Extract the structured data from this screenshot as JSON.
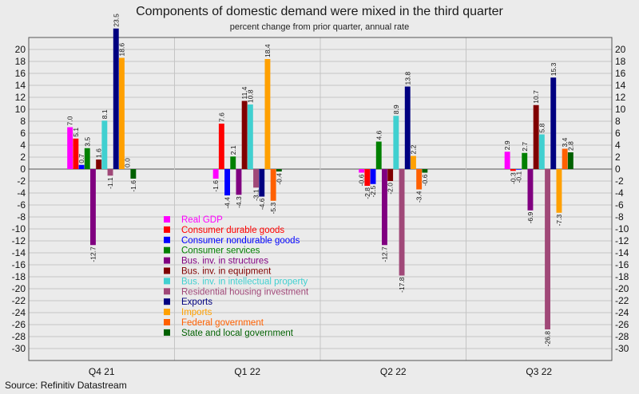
{
  "title": "Components of domestic demand were mixed in the third quarter",
  "subtitle": "percent change from prior quarter, annual rate",
  "source": "Source: Refinitiv Datastream",
  "chart_data": {
    "type": "bar",
    "categories": [
      "Q4 21",
      "Q1 22",
      "Q2 22",
      "Q3 22"
    ],
    "ylim": [
      -32,
      22
    ],
    "yticks": [
      20,
      18,
      16,
      14,
      12,
      10,
      8,
      6,
      4,
      2,
      0,
      -2,
      -4,
      -6,
      -8,
      -10,
      -12,
      -14,
      -16,
      -18,
      -20,
      -22,
      -24,
      -26,
      -28,
      -30
    ],
    "grid": true,
    "legend_placement": "lower-center",
    "series": [
      {
        "name": "Real GDP",
        "color": "#ff00ff",
        "values": [
          7.0,
          -1.6,
          -0.6,
          2.9
        ]
      },
      {
        "name": "Consumer durable goods",
        "color": "#ff0000",
        "values": [
          5.1,
          7.6,
          -2.8,
          -0.3
        ]
      },
      {
        "name": "Consumer nondurable goods",
        "color": "#0000ff",
        "values": [
          0.7,
          -4.4,
          -2.5,
          -0.1
        ]
      },
      {
        "name": "Consumer services",
        "color": "#008000",
        "values": [
          3.5,
          2.1,
          4.6,
          2.7
        ]
      },
      {
        "name": "Bus. inv. in structures",
        "color": "#800080",
        "values": [
          -12.7,
          -4.3,
          -12.7,
          -6.9
        ]
      },
      {
        "name": "Bus. inv. in equipment",
        "color": "#800000",
        "values": [
          1.6,
          11.4,
          -2.0,
          10.7
        ]
      },
      {
        "name": "Bus. inv. in intellectual property",
        "color": "#40d0d0",
        "values": [
          8.1,
          10.8,
          8.9,
          5.8
        ]
      },
      {
        "name": "Residential housing investment",
        "color": "#a04878",
        "values": [
          -1.1,
          -3.1,
          -17.8,
          -26.8
        ]
      },
      {
        "name": "Exports",
        "color": "#000080",
        "values": [
          23.5,
          -4.6,
          13.8,
          15.3
        ]
      },
      {
        "name": "Imports",
        "color": "#ffa000",
        "values": [
          18.6,
          18.4,
          2.2,
          -7.3
        ]
      },
      {
        "name": "Federal government",
        "color": "#ff6000",
        "values": [
          0.0,
          -5.3,
          -3.4,
          3.4
        ]
      },
      {
        "name": "State and local government",
        "color": "#006000",
        "values": [
          -1.6,
          -0.4,
          -0.6,
          2.8
        ]
      }
    ]
  }
}
